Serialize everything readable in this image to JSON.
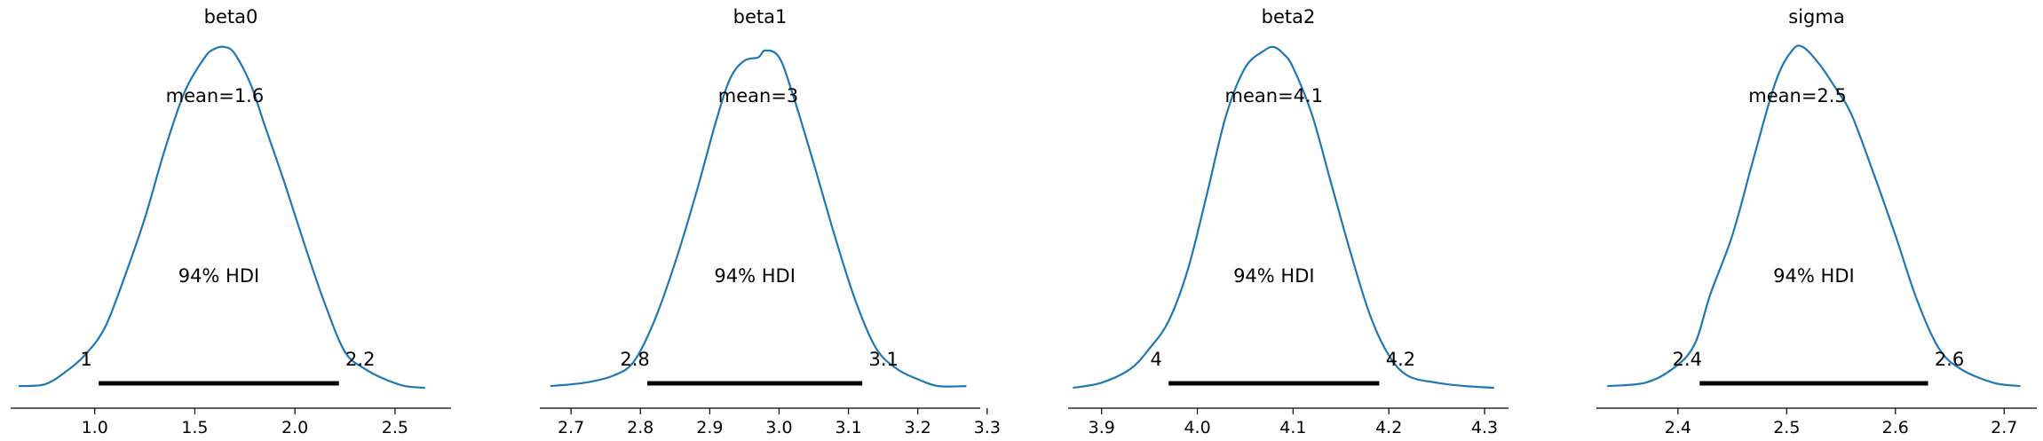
{
  "chart_data": [
    {
      "type": "density",
      "title": "beta0",
      "xlim": [
        0.58,
        2.78
      ],
      "xticks": [
        1.0,
        1.5,
        2.0,
        2.5
      ],
      "xtick_labels": [
        "1.0",
        "1.5",
        "2.0",
        "2.5"
      ],
      "color": "#1f77b4",
      "mean_label": "mean=1.6",
      "mean_position": 1.6,
      "hdi_label": "94% HDI",
      "hdi": [
        1.02,
        2.22
      ],
      "hdi_labels": [
        "1",
        "2.2"
      ],
      "density": {
        "x": [
          0.62,
          0.75,
          0.85,
          0.95,
          1.05,
          1.15,
          1.25,
          1.35,
          1.45,
          1.55,
          1.6,
          1.65,
          1.7,
          1.78,
          1.85,
          1.95,
          2.05,
          2.15,
          2.25,
          2.35,
          2.45,
          2.55,
          2.65
        ],
        "y": [
          0.01,
          0.015,
          0.05,
          0.1,
          0.18,
          0.33,
          0.5,
          0.7,
          0.87,
          0.97,
          0.995,
          1.0,
          0.98,
          0.89,
          0.77,
          0.6,
          0.42,
          0.25,
          0.11,
          0.06,
          0.03,
          0.01,
          0.005
        ]
      }
    },
    {
      "type": "density",
      "title": "beta1",
      "xlim": [
        2.655,
        3.29
      ],
      "xticks": [
        2.7,
        2.8,
        2.9,
        3.0,
        3.1,
        3.2,
        3.3
      ],
      "xtick_labels": [
        "2.7",
        "2.8",
        "2.9",
        "3.0",
        "3.1",
        "3.2",
        "3.3"
      ],
      "color": "#1f77b4",
      "mean_label": "mean=3",
      "mean_position": 2.97,
      "hdi_label": "94% HDI",
      "hdi": [
        2.81,
        3.12
      ],
      "hdi_labels": [
        "2.8",
        "3.1"
      ],
      "density": {
        "x": [
          2.67,
          2.72,
          2.76,
          2.79,
          2.82,
          2.85,
          2.88,
          2.91,
          2.93,
          2.95,
          2.97,
          2.98,
          3.0,
          3.02,
          3.05,
          3.08,
          3.11,
          3.14,
          3.17,
          3.2,
          3.23,
          3.27
        ],
        "y": [
          0.01,
          0.02,
          0.04,
          0.08,
          0.2,
          0.37,
          0.57,
          0.79,
          0.91,
          0.96,
          0.97,
          0.99,
          0.97,
          0.86,
          0.66,
          0.45,
          0.26,
          0.12,
          0.06,
          0.03,
          0.01,
          0.01
        ]
      }
    },
    {
      "type": "density",
      "title": "beta2",
      "xlim": [
        3.865,
        4.325
      ],
      "xticks": [
        3.9,
        4.0,
        4.1,
        4.2,
        4.3
      ],
      "xtick_labels": [
        "3.9",
        "4.0",
        "4.1",
        "4.2",
        "4.3"
      ],
      "color": "#1f77b4",
      "mean_label": "mean=4.1",
      "mean_position": 4.08,
      "hdi_label": "94% HDI",
      "hdi": [
        3.97,
        4.19
      ],
      "hdi_labels": [
        "4",
        "4.2"
      ],
      "density": {
        "x": [
          3.87,
          3.9,
          3.93,
          3.95,
          3.97,
          3.99,
          4.01,
          4.03,
          4.05,
          4.07,
          4.08,
          4.09,
          4.1,
          4.12,
          4.14,
          4.16,
          4.18,
          4.2,
          4.22,
          4.25,
          4.28,
          4.31
        ],
        "y": [
          0.005,
          0.02,
          0.06,
          0.12,
          0.2,
          0.35,
          0.57,
          0.8,
          0.94,
          0.99,
          1.0,
          0.98,
          0.94,
          0.8,
          0.6,
          0.4,
          0.22,
          0.1,
          0.04,
          0.02,
          0.01,
          0.005
        ]
      }
    },
    {
      "type": "density",
      "title": "sigma",
      "xlim": [
        2.325,
        2.73
      ],
      "xticks": [
        2.4,
        2.5,
        2.6,
        2.7
      ],
      "xtick_labels": [
        "2.4",
        "2.5",
        "2.6",
        "2.7"
      ],
      "color": "#1f77b4",
      "mean_label": "mean=2.5",
      "mean_position": 2.51,
      "hdi_label": "94% HDI",
      "hdi": [
        2.42,
        2.63
      ],
      "hdi_labels": [
        "2.4",
        "2.6"
      ],
      "density": {
        "x": [
          2.335,
          2.37,
          2.395,
          2.415,
          2.43,
          2.45,
          2.47,
          2.49,
          2.505,
          2.515,
          2.53,
          2.545,
          2.56,
          2.58,
          2.6,
          2.62,
          2.64,
          2.66,
          2.69,
          2.715
        ],
        "y": [
          0.01,
          0.02,
          0.06,
          0.13,
          0.28,
          0.45,
          0.68,
          0.9,
          0.99,
          1.0,
          0.95,
          0.88,
          0.8,
          0.63,
          0.45,
          0.26,
          0.12,
          0.06,
          0.02,
          0.01
        ]
      }
    }
  ]
}
